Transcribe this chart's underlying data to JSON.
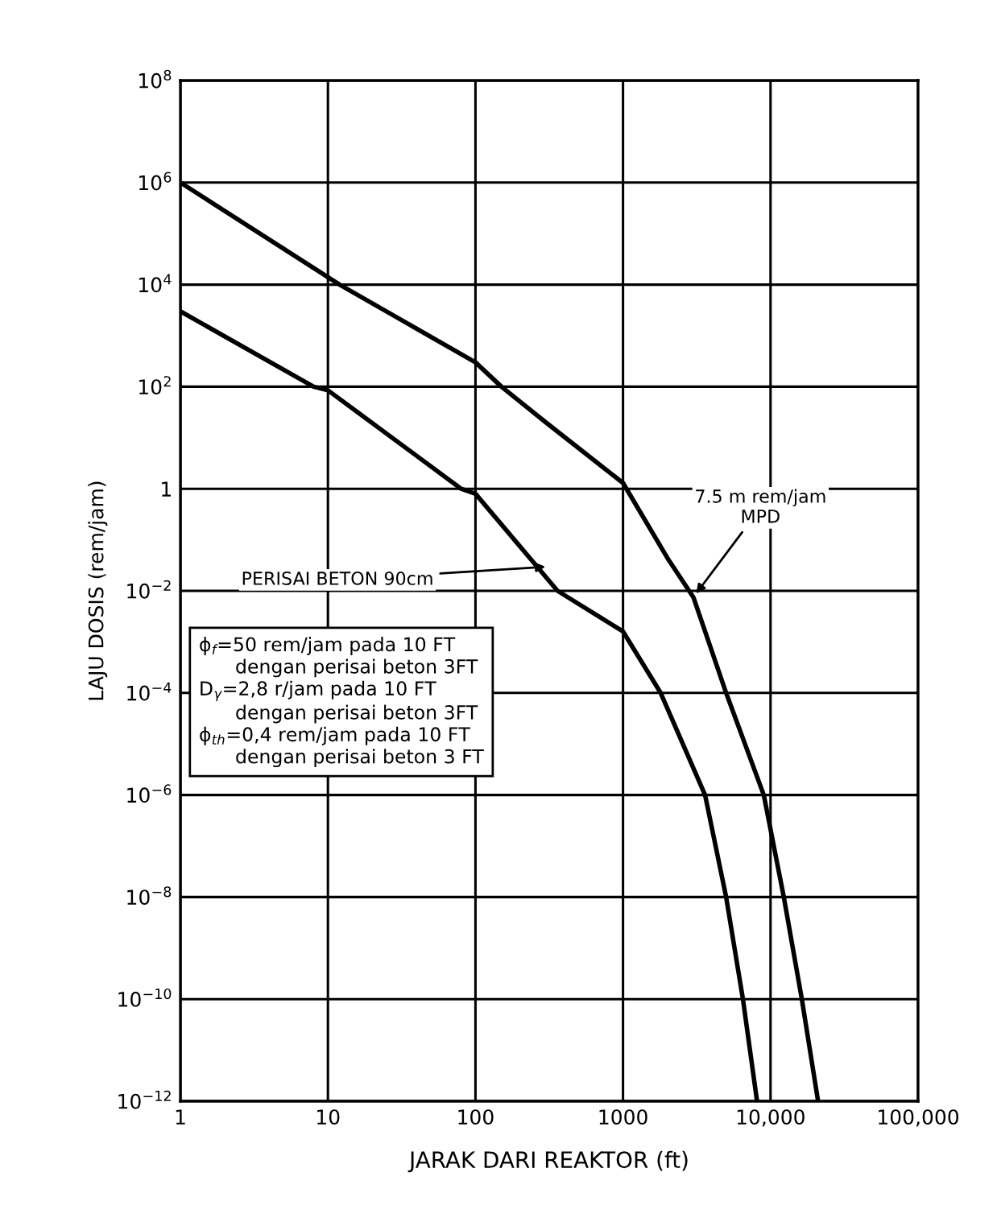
{
  "chart_data": {
    "type": "line",
    "xlabel": "JARAK DARI REAKTOR (ft)",
    "ylabel": "LAJU DOSIS (rem/jam)",
    "log": "xy",
    "grid": true,
    "marker": "none",
    "line_style": "solid",
    "xlim": [
      1,
      100000
    ],
    "ylim": [
      1e-12,
      100000000.0
    ],
    "xticks": [
      1,
      10,
      100,
      {
        "value": 1000,
        "label": "1000"
      },
      {
        "value": 10000,
        "label": "10,000"
      },
      {
        "value": 100000,
        "label": "100,000"
      }
    ],
    "yticks": [
      {
        "value": 1e-12,
        "label": "10$^{−12}$"
      },
      {
        "value": 1e-10,
        "label": "10$^{−10}$"
      },
      {
        "value": 1e-08,
        "label": "10$^{−8}$"
      },
      {
        "value": 1e-06,
        "label": "10$^{−6}$"
      },
      {
        "value": 0.0001,
        "label": "10$^{−4}$"
      },
      {
        "value": 0.01,
        "label": "10$^{−2}$"
      },
      1,
      {
        "value": 100,
        "label": "10$^{2}$"
      },
      {
        "value": 10000,
        "label": "10$^{4}$"
      },
      {
        "value": 1000000,
        "label": "10$^{6}$"
      },
      {
        "value": 100000000,
        "label": "10$^{8}$"
      }
    ],
    "series": [
      {
        "color": "#000000",
        "x": [
          1,
          12,
          100,
          150,
          300,
          1000,
          2000,
          3000,
          5000,
          9000,
          12300,
          16300,
          21000
        ],
        "values": [
          1000000,
          10000,
          300,
          100,
          20,
          1.3,
          0.044,
          0.0075,
          0.0001,
          1e-06,
          1e-08,
          1e-10,
          1e-12
        ]
      },
      {
        "color": "#000000",
        "x": [
          1,
          8,
          10,
          80,
          100,
          360,
          1000,
          1800,
          3600,
          5000,
          6500,
          8100
        ],
        "values": [
          3000,
          100,
          85,
          1,
          0.8,
          0.01,
          0.0016,
          0.0001,
          1e-06,
          1e-08,
          1e-10,
          1e-12
        ]
      }
    ],
    "annotations": [
      {
        "text": "PERISAI BETON 90cm",
        "x": 320,
        "y": 0.03
      },
      {
        "text": "7.5 m rem/jam\nMPD",
        "x": 3000,
        "y": 0.0075
      },
      "ϕ$_{f}$=50 rem/jam pada 10 FT\n      dengan perisai beton 3FT\nD$_{γ}$=2,8 r/jam pada 10 FT\n      dengan perisai beton 3FT\nϕ$_{th}$=0,4 rem/jam pada 10 FT\n      dengan perisai beton 3 FT"
    ]
  }
}
